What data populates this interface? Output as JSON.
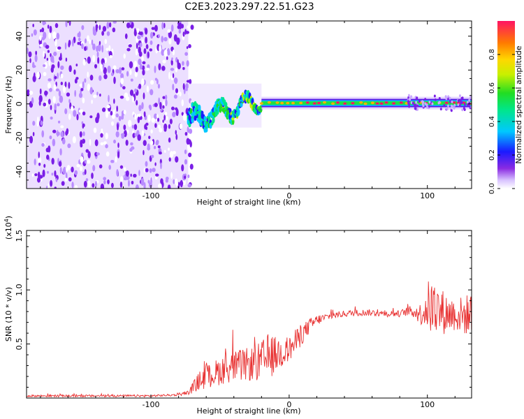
{
  "title": "C2E3.2023.297.22.51.G23",
  "chart_data": [
    {
      "type": "heatmap",
      "xlabel": "Height of straight line (km)",
      "ylabel": "Frequency (Hz)",
      "xlim": [
        -190,
        132
      ],
      "ylim": [
        -50,
        49
      ],
      "xticks": [
        -100,
        0,
        100
      ],
      "yticks": [
        -40,
        -20,
        0,
        20,
        40
      ],
      "colorbar": {
        "label": "Normalized spectral amplitude",
        "range": [
          0,
          1
        ],
        "ticks": [
          "0.0",
          "0.2",
          "0.4",
          "0.6",
          "0.8"
        ]
      },
      "bands": [
        {
          "x": [
            -190,
            -73
          ],
          "signal": "scattered noise across full frequency range",
          "peak_amplitude": 0.15
        },
        {
          "x": [
            -73,
            -20
          ],
          "signal": "broad wiggling band",
          "center_hz": [
            -12,
            8
          ],
          "peak_amplitude": 0.55
        },
        {
          "x": [
            -20,
            85
          ],
          "signal": "narrow band near 0 Hz",
          "center_hz": [
            0,
            1
          ],
          "peak_amplitude": 0.9
        },
        {
          "x": [
            85,
            132
          ],
          "signal": "narrow band near 0 Hz with side noise",
          "center_hz": [
            -1,
            1
          ],
          "peak_amplitude": 0.9
        }
      ]
    },
    {
      "type": "line",
      "xlabel": "Height of straight line (km)",
      "ylabel": "SNR (10 * v/v)",
      "y_multiplier": "(x10^4)",
      "xlim": [
        -190,
        132
      ],
      "ylim": [
        0,
        1.55
      ],
      "xticks": [
        -100,
        0,
        100
      ],
      "yticks": [
        "0.5",
        "1.0",
        "1.5"
      ],
      "color": "#e83232",
      "series": [
        {
          "x": [
            -190,
            -150,
            -100,
            -80,
            -73,
            -65,
            -55,
            -45,
            -35,
            -25,
            -20,
            -15,
            -10,
            -5,
            0,
            5,
            10,
            15,
            20,
            25,
            30,
            40,
            50,
            60,
            70,
            80,
            85,
            90,
            95,
            100,
            105,
            110,
            115,
            120,
            125,
            132
          ],
          "y": [
            0.02,
            0.02,
            0.02,
            0.03,
            0.05,
            0.16,
            0.22,
            0.28,
            0.3,
            0.32,
            0.33,
            0.38,
            0.4,
            0.43,
            0.45,
            0.52,
            0.6,
            0.67,
            0.72,
            0.74,
            0.76,
            0.78,
            0.79,
            0.79,
            0.78,
            0.78,
            0.8,
            0.8,
            0.78,
            0.85,
            0.82,
            0.8,
            0.78,
            0.78,
            0.76,
            0.78
          ],
          "noise": [
            0.01,
            0.01,
            0.01,
            0.01,
            0.02,
            0.09,
            0.12,
            0.14,
            0.15,
            0.16,
            0.2,
            0.22,
            0.17,
            0.15,
            0.12,
            0.12,
            0.09,
            0.07,
            0.05,
            0.04,
            0.03,
            0.03,
            0.03,
            0.03,
            0.03,
            0.03,
            0.04,
            0.06,
            0.1,
            0.24,
            0.26,
            0.22,
            0.18,
            0.16,
            0.18,
            0.2
          ]
        }
      ]
    }
  ]
}
